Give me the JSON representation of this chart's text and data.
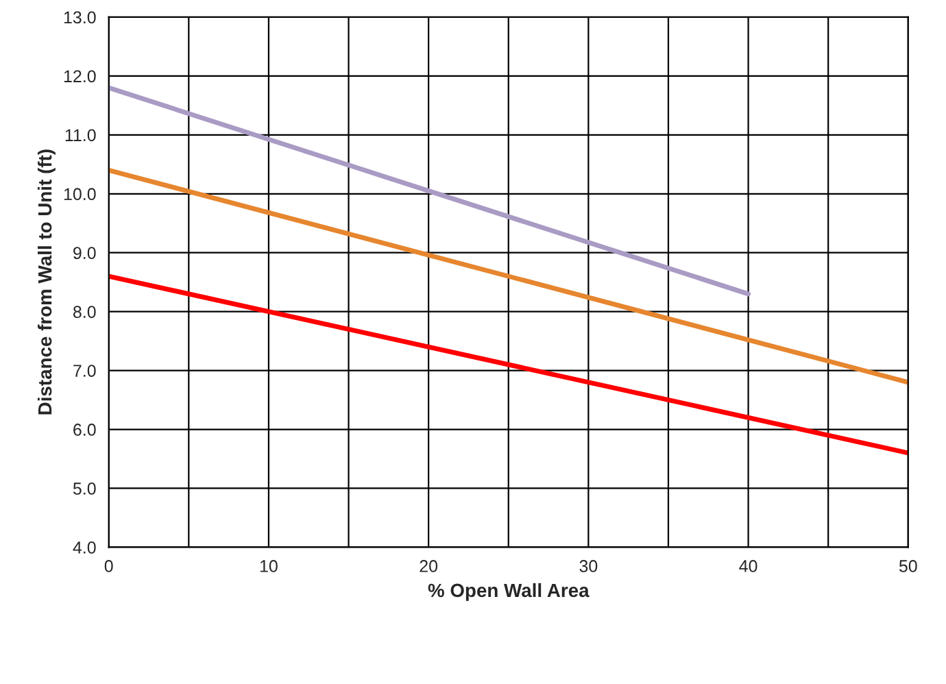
{
  "chart_data": {
    "type": "line",
    "xlabel": "% Open Wall Area",
    "ylabel": "Distance from Wall to Unit (ft)",
    "xlim": [
      0,
      50
    ],
    "ylim": [
      4.0,
      13.0
    ],
    "xticks": [
      0,
      {
        "value": 5,
        "label": null
      },
      10,
      {
        "value": 15,
        "label": null
      },
      20,
      {
        "value": 25,
        "label": null
      },
      30,
      {
        "value": 35,
        "label": null
      },
      40,
      {
        "value": 45,
        "label": null
      },
      50
    ],
    "yticks": [
      {
        "value": 4,
        "label": "4.0"
      },
      {
        "value": 5,
        "label": "5.0"
      },
      {
        "value": 6,
        "label": "6.0"
      },
      {
        "value": 7,
        "label": "7.0"
      },
      {
        "value": 8,
        "label": "8.0"
      },
      {
        "value": 9,
        "label": "9.0"
      },
      {
        "value": 10,
        "label": "10.0"
      },
      {
        "value": 11,
        "label": "11.0"
      },
      {
        "value": 12,
        "label": "12.0"
      },
      {
        "value": 13,
        "label": "13.0"
      }
    ],
    "grid": true,
    "marker": "none",
    "line_style": "solid",
    "series": [
      {
        "color": "#ff0000",
        "x": [
          0,
          50
        ],
        "values": [
          8.6,
          5.6
        ]
      },
      {
        "color": "#e6862f",
        "x": [
          0,
          50
        ],
        "values": [
          10.4,
          6.8
        ]
      },
      {
        "color": "#a99bc4",
        "x": [
          0,
          40
        ],
        "values": [
          11.8,
          8.3
        ]
      }
    ]
  }
}
